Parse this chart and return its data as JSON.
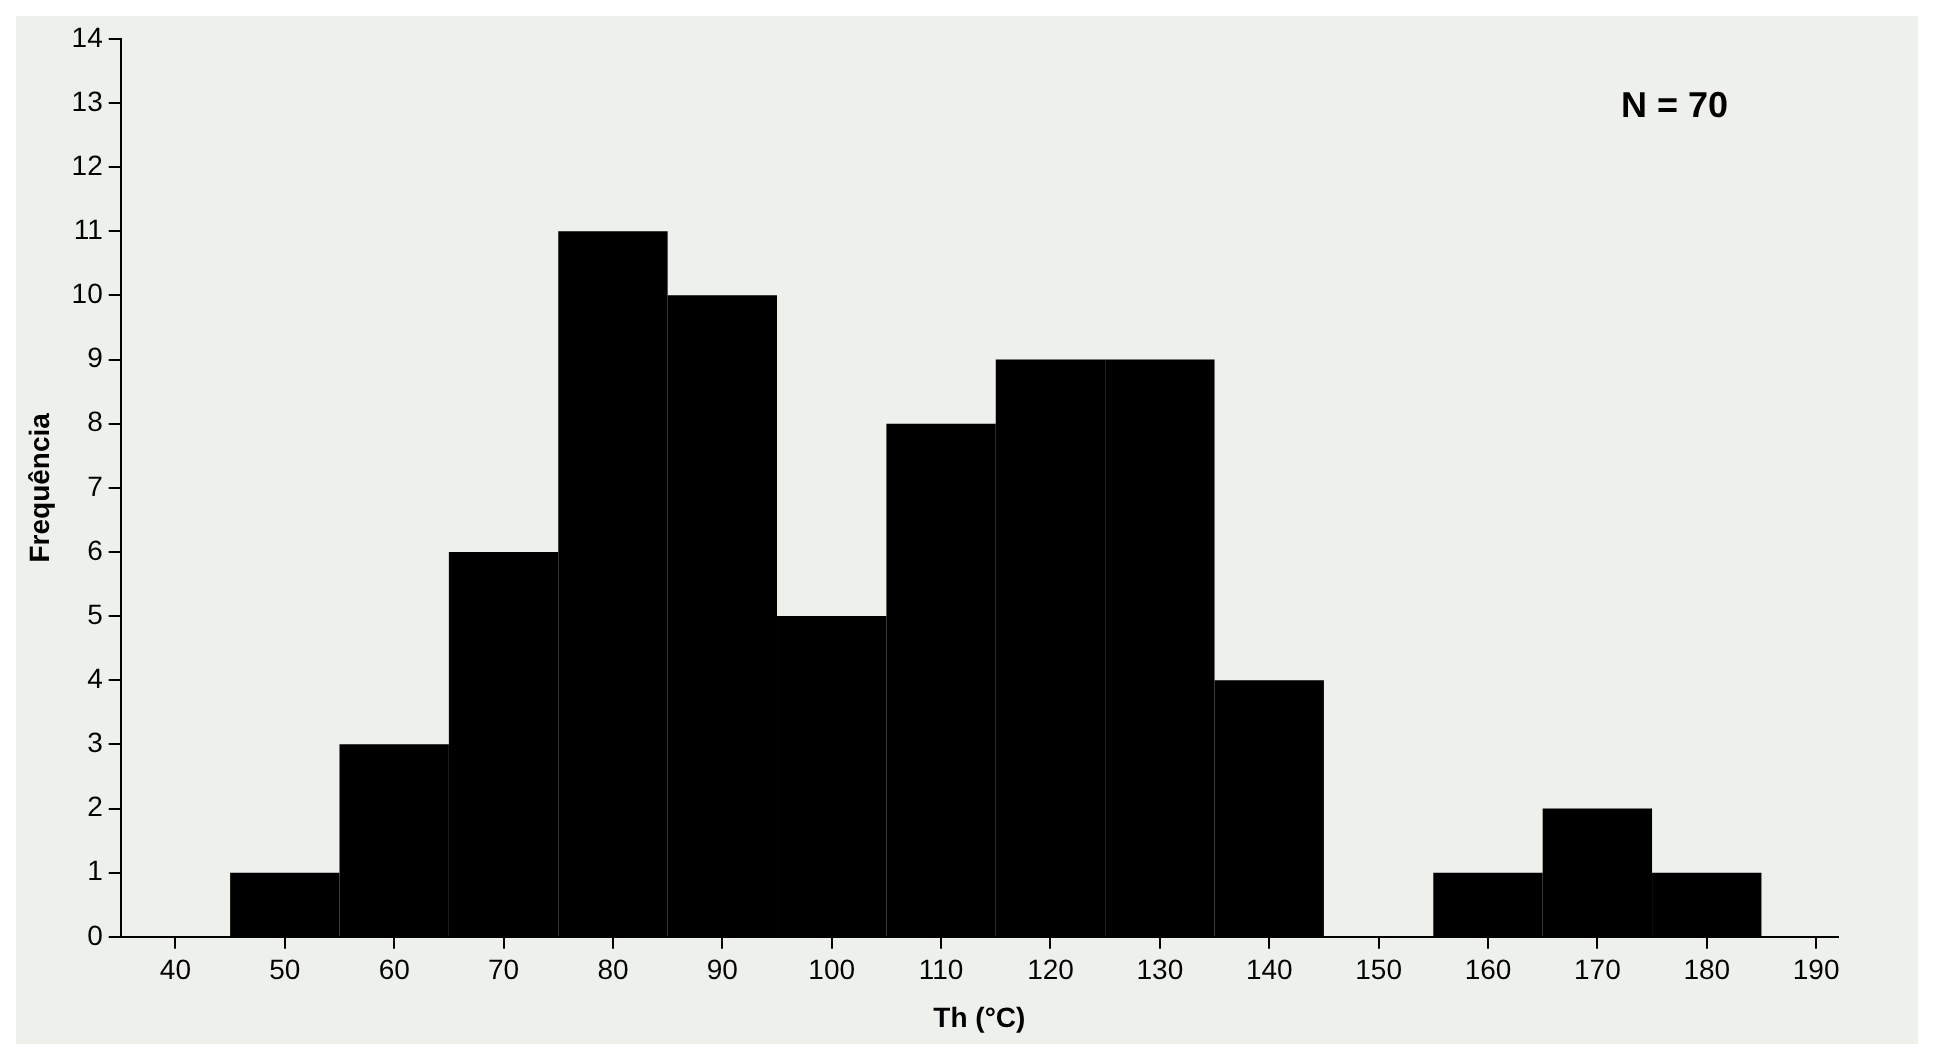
{
  "chart_data": {
    "type": "histogram",
    "xlabel": "Th (°C)",
    "ylabel": "Frequência",
    "bins": [
      45,
      55,
      65,
      75,
      85,
      95,
      105,
      115,
      125,
      135,
      145,
      155,
      165,
      175,
      185
    ],
    "values": [
      1,
      3,
      6,
      11,
      10,
      5,
      8,
      9,
      9,
      4,
      0,
      1,
      2,
      1
    ],
    "color": "#000000",
    "xlim": [
      35,
      192
    ],
    "xticks": [
      40,
      50,
      60,
      70,
      80,
      90,
      100,
      110,
      120,
      130,
      140,
      150,
      160,
      170,
      180,
      190
    ],
    "ylim": [
      0,
      14
    ],
    "yticks": [
      0,
      1,
      2,
      3,
      4,
      5,
      6,
      7,
      8,
      9,
      10,
      11,
      12,
      13,
      14
    ],
    "grid": false,
    "legend": false,
    "annotations": [
      "N = 70"
    ]
  }
}
